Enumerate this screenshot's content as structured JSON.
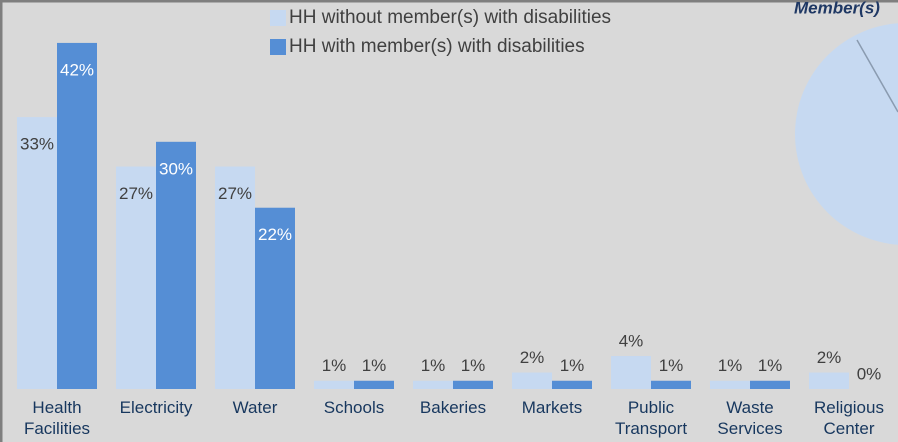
{
  "chart_data": {
    "type": "bar",
    "categories": [
      "Health Facilities",
      "Electricity",
      "Water",
      "Schools",
      "Bakeries",
      "Markets",
      "Public Transport",
      "Waste Services",
      "Religious Center"
    ],
    "series": [
      {
        "name": "HH without member(s) with disabilities",
        "color": "#c6d9f1",
        "values": [
          33,
          27,
          27,
          1,
          1,
          2,
          4,
          1,
          2
        ],
        "value_labels": [
          "33%",
          "27%",
          "27%",
          "1%",
          "1%",
          "2%",
          "4%",
          "1%",
          "2%"
        ]
      },
      {
        "name": "HH with member(s) with disabilities",
        "color": "#558ed5",
        "values": [
          42,
          30,
          22,
          1,
          1,
          1,
          1,
          1,
          0
        ],
        "value_labels": [
          "42%",
          "30%",
          "22%",
          "1%",
          "1%",
          "1%",
          "1%",
          "1%",
          "0%"
        ]
      }
    ],
    "legend": "top",
    "annotations": [
      "Member(s)"
    ]
  }
}
